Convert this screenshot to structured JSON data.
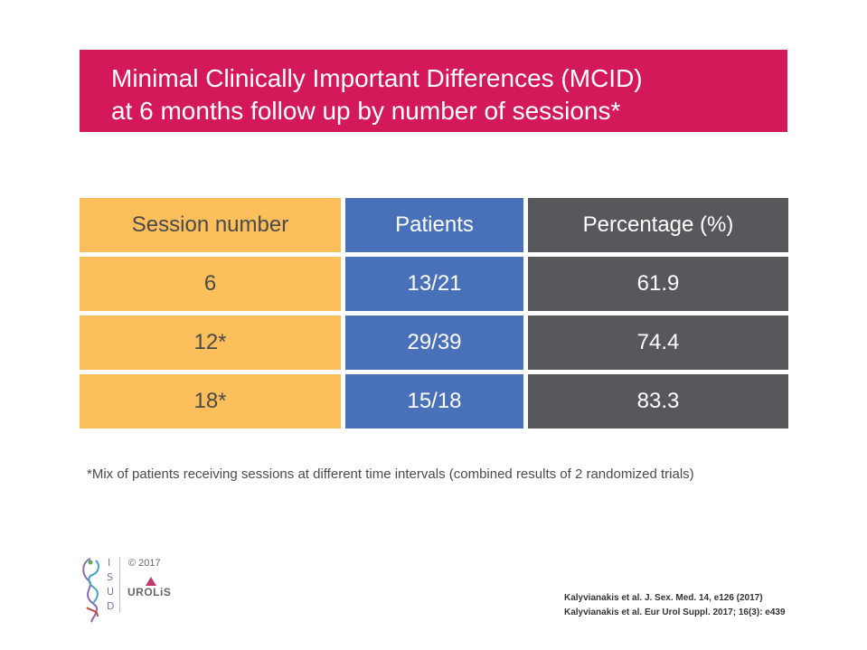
{
  "title": {
    "line1": "Minimal Clinically Important Differences (MCID)",
    "line2": "at 6 months follow up by number of sessions*"
  },
  "table": {
    "headers": [
      "Session number",
      "Patients",
      "Percentage (%)"
    ],
    "rows": [
      [
        "6",
        "13/21",
        "61.9"
      ],
      [
        "12*",
        "29/39",
        "74.4"
      ],
      [
        "18*",
        "15/18",
        "83.3"
      ]
    ]
  },
  "footnote": "*Mix of patients receiving sessions at different time intervals (combined results of 2 randomized trials)",
  "footer": {
    "isud_letters": [
      "I",
      "S",
      "U",
      "D"
    ],
    "copyright": "© 2017",
    "urolis_logo": "UROLiS",
    "references": [
      "Kalyvianakis et al. J. Sex. Med. 14, e126 (2017)",
      "Kalyvianakis et al. Eur Urol Suppl. 2017; 16(3): e439"
    ]
  },
  "colors": {
    "title_bg": "#d4195b",
    "col1": "#fcbf5c",
    "col2": "#4871ba",
    "col3": "#58575b"
  }
}
